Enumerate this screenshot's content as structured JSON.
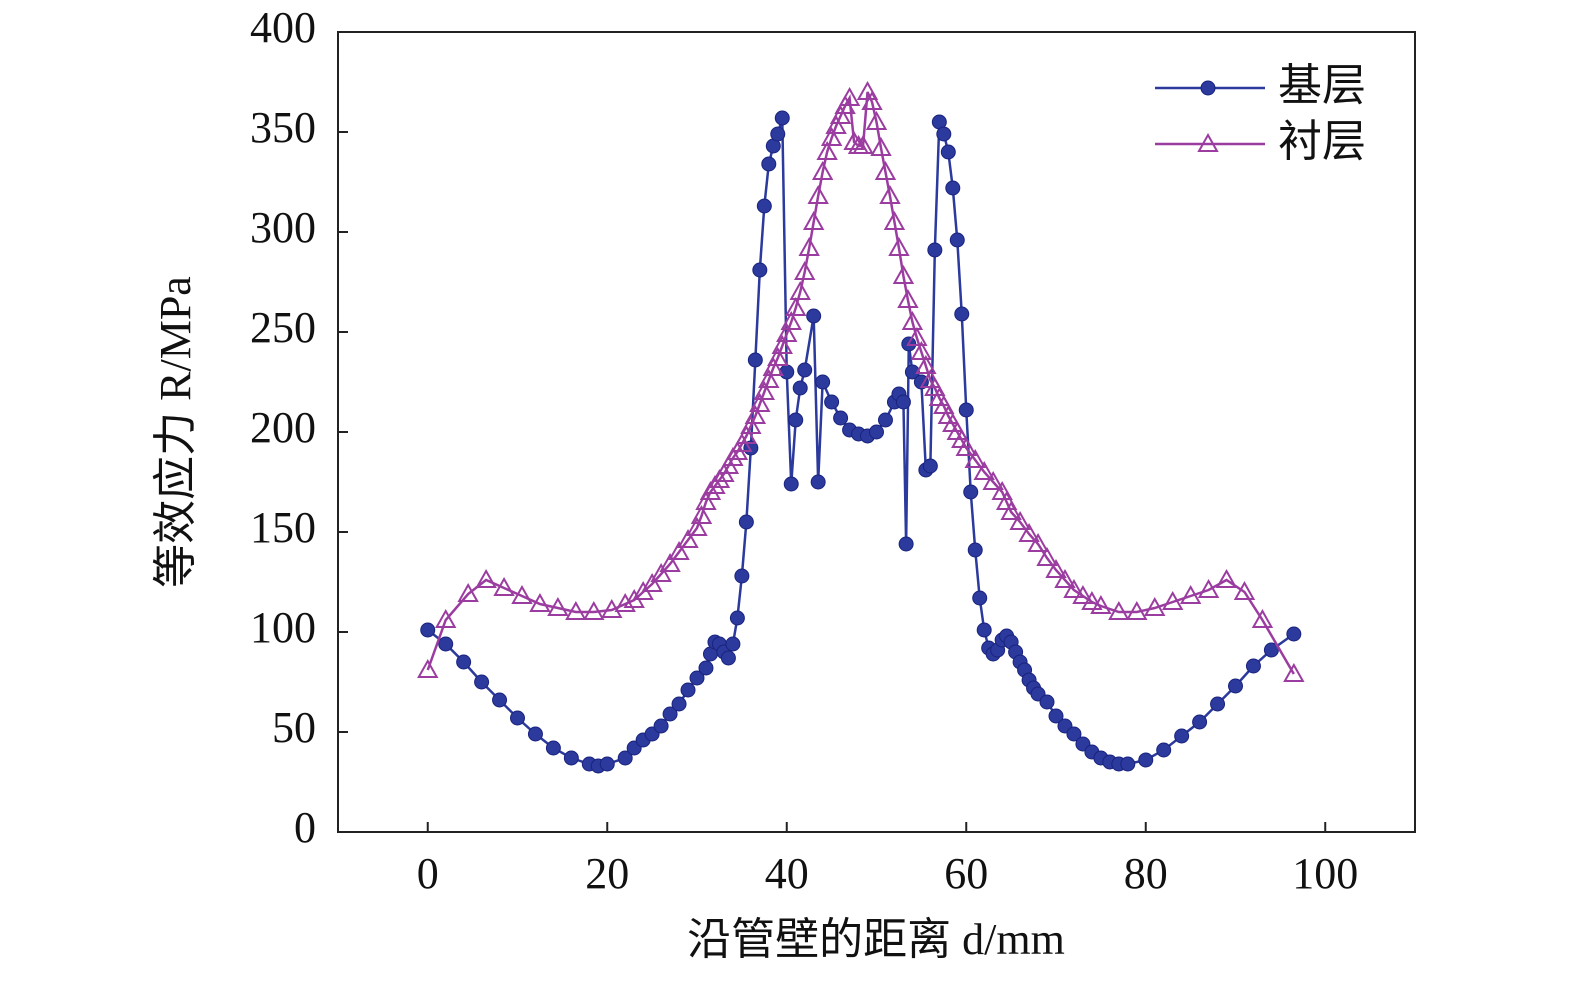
{
  "chart_data": {
    "type": "line",
    "xlabel": "沿管壁的距离 d/mm",
    "ylabel": "等效应力 R/MPa",
    "xlim": [
      -10,
      110
    ],
    "xticks": [
      0,
      20,
      40,
      60,
      80,
      100
    ],
    "ylim": [
      0,
      400
    ],
    "yticks": [
      0,
      50,
      100,
      150,
      200,
      250,
      300,
      350,
      400
    ],
    "legend": "upper right",
    "series": [
      {
        "name": "基层",
        "color": "#2b3a9c",
        "marker": "circle",
        "x": [
          0,
          2,
          4,
          6,
          8,
          10,
          12,
          14,
          16,
          18,
          19,
          20,
          22,
          23,
          24,
          25,
          26,
          27,
          28,
          29,
          30,
          31,
          31.5,
          32,
          32.5,
          33,
          33.5,
          34,
          34.5,
          35,
          35.5,
          36,
          36.5,
          37,
          37.5,
          38,
          38.5,
          39,
          39.5,
          40,
          40.5,
          41,
          41.5,
          42,
          43,
          43.5,
          44,
          45,
          46,
          47,
          48,
          49,
          50,
          51,
          52,
          52.5,
          53,
          53.3,
          53.6,
          54,
          55,
          55.5,
          56,
          56.5,
          57,
          57.5,
          58,
          58.5,
          59,
          59.5,
          60,
          60.5,
          61,
          61.5,
          62,
          62.5,
          63,
          63.5,
          64,
          64.5,
          65,
          65.5,
          66,
          66.5,
          67,
          67.5,
          68,
          69,
          70,
          71,
          72,
          73,
          74,
          75,
          76,
          77,
          78,
          80,
          82,
          84,
          86,
          88,
          90,
          92,
          94,
          96.5
        ],
        "values": [
          101,
          94,
          85,
          75,
          66,
          57,
          49,
          42,
          37,
          34,
          33,
          34,
          37,
          42,
          46,
          49,
          53,
          59,
          64,
          71,
          77,
          82,
          89,
          95,
          94,
          90,
          87,
          94,
          107,
          128,
          155,
          192,
          236,
          281,
          313,
          334,
          343,
          349,
          357,
          230,
          174,
          206,
          222,
          231,
          258,
          175,
          225,
          215,
          207,
          201,
          199,
          198,
          200,
          206,
          215,
          219,
          215,
          144,
          244,
          230,
          225,
          181,
          183,
          291,
          355,
          349,
          340,
          322,
          296,
          259,
          211,
          170,
          141,
          117,
          101,
          92,
          89,
          91,
          96,
          98,
          95,
          90,
          85,
          81,
          76,
          72,
          69,
          65,
          58,
          53,
          49,
          44,
          40,
          37,
          35,
          34,
          34,
          36,
          41,
          48,
          55,
          64,
          73,
          83,
          91,
          99
        ]
      },
      {
        "name": "衬层",
        "color": "#9b3ca0",
        "marker": "triangle",
        "x": [
          0,
          2,
          4.5,
          6.5,
          8.5,
          10.5,
          12.5,
          14.5,
          16.5,
          18.5,
          20.5,
          22,
          23,
          24,
          25,
          26,
          27,
          28,
          29,
          30,
          30.5,
          31,
          31.5,
          32,
          32.5,
          33,
          33.5,
          34,
          34.5,
          35,
          35.5,
          36,
          36.5,
          37,
          37.5,
          38,
          38.5,
          39,
          39.5,
          40,
          40.5,
          41,
          41.5,
          42,
          42.5,
          43,
          43.5,
          44,
          44.5,
          45,
          45.5,
          46,
          46.5,
          47,
          47.5,
          48,
          48.5,
          49,
          49.5,
          50,
          50.5,
          51,
          51.5,
          52,
          52.5,
          53,
          53.5,
          54,
          54.5,
          55,
          55.5,
          56,
          56.5,
          57,
          57.5,
          58,
          58.5,
          59,
          59.5,
          60,
          61,
          62,
          63,
          64,
          64.5,
          65,
          66,
          67,
          68,
          69,
          70,
          71,
          72,
          73,
          74,
          75,
          77,
          79,
          81,
          83,
          85,
          87,
          89,
          91,
          93,
          96.5
        ],
        "values": [
          81,
          106,
          119,
          126,
          122,
          118,
          114,
          112,
          110,
          110,
          111,
          114,
          116,
          120,
          124,
          129,
          134,
          140,
          146,
          152,
          158,
          165,
          170,
          173,
          176,
          179,
          183,
          187,
          190,
          194,
          198,
          203,
          208,
          214,
          220,
          226,
          232,
          237,
          243,
          249,
          255,
          262,
          270,
          280,
          292,
          305,
          318,
          330,
          340,
          347,
          353,
          358,
          363,
          367,
          345,
          343,
          343,
          370,
          365,
          355,
          342,
          330,
          318,
          305,
          292,
          278,
          266,
          255,
          247,
          240,
          233,
          226,
          222,
          217,
          213,
          208,
          204,
          200,
          196,
          192,
          186,
          180,
          175,
          170,
          165,
          160,
          155,
          149,
          144,
          137,
          131,
          126,
          121,
          118,
          115,
          113,
          110,
          110,
          112,
          115,
          118,
          121,
          126,
          120,
          106,
          79
        ]
      }
    ]
  }
}
